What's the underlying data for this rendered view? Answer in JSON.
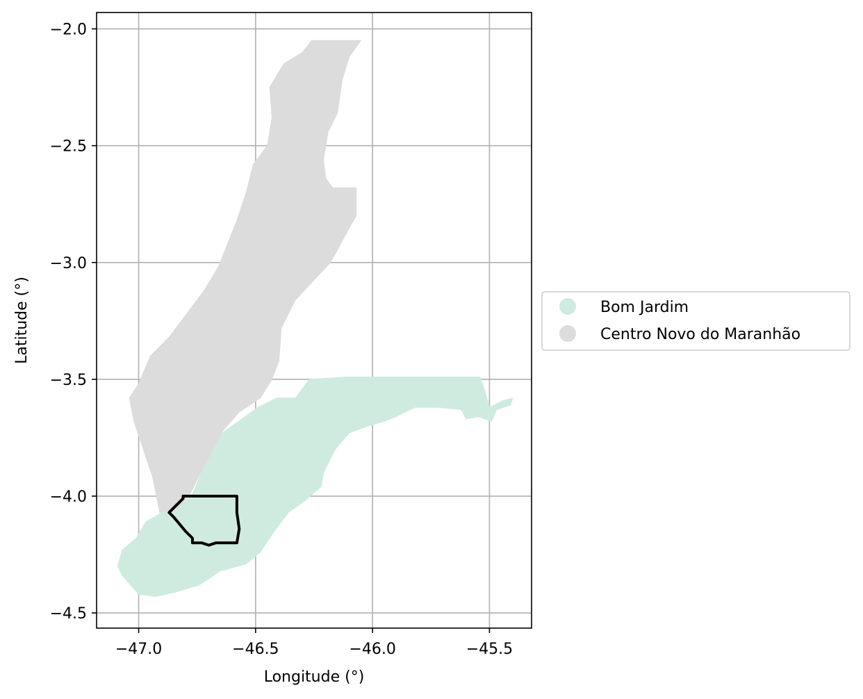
{
  "chart_data": {
    "type": "map",
    "xlabel": "Longitude (°)",
    "ylabel": "Latitude (°)",
    "xlim": [
      -47.18,
      -45.32
    ],
    "ylim": [
      -4.565,
      -1.93
    ],
    "grid": true,
    "x_ticks": [
      {
        "value": -47.0,
        "label": "−47.0"
      },
      {
        "value": -46.5,
        "label": "−46.5"
      },
      {
        "value": -46.0,
        "label": "−46.0"
      },
      {
        "value": -45.5,
        "label": "−45.5"
      }
    ],
    "y_ticks": [
      {
        "value": -2.0,
        "label": "−2.0"
      },
      {
        "value": -2.5,
        "label": "−2.5"
      },
      {
        "value": -3.0,
        "label": "−3.0"
      },
      {
        "value": -3.5,
        "label": "−3.5"
      },
      {
        "value": -4.0,
        "label": "−4.0"
      },
      {
        "value": -4.5,
        "label": "−4.5"
      }
    ],
    "legend_position": "right-center",
    "regions": [
      {
        "name": "Bom Jardim",
        "color": "#cfebdf",
        "polygon": [
          [
            -46.27,
            -3.5
          ],
          [
            -46.11,
            -3.49
          ],
          [
            -45.54,
            -3.49
          ],
          [
            -45.52,
            -3.55
          ],
          [
            -45.5,
            -3.62
          ],
          [
            -45.44,
            -3.59
          ],
          [
            -45.4,
            -3.58
          ],
          [
            -45.41,
            -3.61
          ],
          [
            -45.47,
            -3.63
          ],
          [
            -45.49,
            -3.68
          ],
          [
            -45.55,
            -3.66
          ],
          [
            -45.6,
            -3.67
          ],
          [
            -45.62,
            -3.63
          ],
          [
            -45.72,
            -3.62
          ],
          [
            -45.82,
            -3.62
          ],
          [
            -45.9,
            -3.66
          ],
          [
            -45.95,
            -3.68
          ],
          [
            -46.02,
            -3.7
          ],
          [
            -46.1,
            -3.73
          ],
          [
            -46.16,
            -3.8
          ],
          [
            -46.21,
            -3.9
          ],
          [
            -46.22,
            -3.96
          ],
          [
            -46.29,
            -4.02
          ],
          [
            -46.36,
            -4.07
          ],
          [
            -46.42,
            -4.15
          ],
          [
            -46.48,
            -4.24
          ],
          [
            -46.54,
            -4.29
          ],
          [
            -46.65,
            -4.32
          ],
          [
            -46.74,
            -4.38
          ],
          [
            -46.84,
            -4.41
          ],
          [
            -46.93,
            -4.43
          ],
          [
            -47.0,
            -4.42
          ],
          [
            -47.07,
            -4.34
          ],
          [
            -47.09,
            -4.3
          ],
          [
            -47.07,
            -4.23
          ],
          [
            -47.01,
            -4.18
          ],
          [
            -46.97,
            -4.11
          ],
          [
            -46.9,
            -4.07
          ],
          [
            -46.82,
            -4.04
          ],
          [
            -46.77,
            -3.99
          ],
          [
            -46.74,
            -3.92
          ],
          [
            -46.72,
            -3.86
          ],
          [
            -46.7,
            -3.78
          ],
          [
            -46.63,
            -3.72
          ],
          [
            -46.56,
            -3.67
          ],
          [
            -46.49,
            -3.62
          ],
          [
            -46.41,
            -3.58
          ],
          [
            -46.33,
            -3.58
          ]
        ]
      },
      {
        "name": "Centro Novo do Maranhão",
        "color": "#dcdcdc",
        "polygon": [
          [
            -46.26,
            -2.05
          ],
          [
            -46.05,
            -2.05
          ],
          [
            -46.1,
            -2.12
          ],
          [
            -46.13,
            -2.22
          ],
          [
            -46.15,
            -2.36
          ],
          [
            -46.19,
            -2.44
          ],
          [
            -46.21,
            -2.56
          ],
          [
            -46.2,
            -2.64
          ],
          [
            -46.17,
            -2.68
          ],
          [
            -46.07,
            -2.68
          ],
          [
            -46.07,
            -2.8
          ],
          [
            -46.12,
            -2.89
          ],
          [
            -46.18,
            -3.0
          ],
          [
            -46.33,
            -3.16
          ],
          [
            -46.39,
            -3.28
          ],
          [
            -46.4,
            -3.42
          ],
          [
            -46.43,
            -3.5
          ],
          [
            -46.48,
            -3.58
          ],
          [
            -46.57,
            -3.64
          ],
          [
            -46.64,
            -3.72
          ],
          [
            -46.72,
            -3.87
          ],
          [
            -46.78,
            -3.99
          ],
          [
            -46.83,
            -4.05
          ],
          [
            -46.91,
            -4.07
          ],
          [
            -46.94,
            -3.92
          ],
          [
            -46.98,
            -3.8
          ],
          [
            -47.02,
            -3.68
          ],
          [
            -47.04,
            -3.58
          ],
          [
            -47.0,
            -3.52
          ],
          [
            -46.95,
            -3.4
          ],
          [
            -46.87,
            -3.32
          ],
          [
            -46.78,
            -3.2
          ],
          [
            -46.72,
            -3.12
          ],
          [
            -46.66,
            -3.02
          ],
          [
            -46.62,
            -2.92
          ],
          [
            -46.58,
            -2.82
          ],
          [
            -46.54,
            -2.7
          ],
          [
            -46.51,
            -2.58
          ],
          [
            -46.45,
            -2.5
          ],
          [
            -46.43,
            -2.38
          ],
          [
            -46.44,
            -2.25
          ],
          [
            -46.38,
            -2.15
          ],
          [
            -46.3,
            -2.1
          ]
        ]
      }
    ],
    "outline": {
      "color": "#000000",
      "polygon": [
        [
          -46.81,
          -4.0
        ],
        [
          -46.58,
          -4.0
        ],
        [
          -46.58,
          -4.07
        ],
        [
          -46.57,
          -4.14
        ],
        [
          -46.58,
          -4.2
        ],
        [
          -46.67,
          -4.2
        ],
        [
          -46.7,
          -4.21
        ],
        [
          -46.73,
          -4.2
        ],
        [
          -46.77,
          -4.2
        ],
        [
          -46.77,
          -4.18
        ],
        [
          -46.8,
          -4.15
        ],
        [
          -46.85,
          -4.09
        ],
        [
          -46.87,
          -4.07
        ],
        [
          -46.81,
          -4.01
        ]
      ]
    }
  }
}
